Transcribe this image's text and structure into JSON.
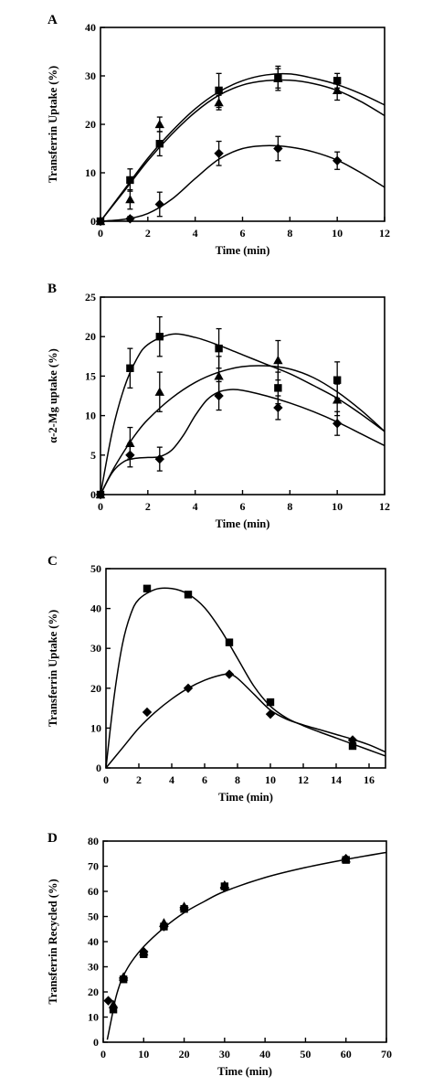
{
  "chart_data": [
    {
      "panel": "A",
      "type": "line",
      "xlabel": "Time (min)",
      "ylabel": "Transferrin Uptake (%)",
      "xlim": [
        0,
        12
      ],
      "ylim": [
        0,
        40
      ],
      "xticks": [
        0,
        2,
        4,
        6,
        8,
        10,
        12
      ],
      "yticks": [
        0,
        10,
        20,
        30,
        40
      ],
      "grid": false,
      "series": [
        {
          "marker": "square",
          "x": [
            0,
            1.25,
            2.5,
            5,
            7.5,
            10
          ],
          "y": [
            0,
            8.5,
            16,
            27,
            29.5,
            29
          ],
          "err": [
            0,
            2.3,
            2.5,
            3.5,
            2.5,
            1.5
          ],
          "curve_x": [
            0,
            1,
            2,
            3,
            4,
            5,
            6,
            7,
            8,
            9,
            10,
            11,
            12
          ],
          "curve_y": [
            0,
            6.5,
            13,
            18.5,
            23.2,
            26.7,
            29,
            30.2,
            30.4,
            29.5,
            28.2,
            26.3,
            24
          ]
        },
        {
          "marker": "triangle",
          "x": [
            0,
            1.25,
            2.5,
            5,
            7.5,
            10
          ],
          "y": [
            0,
            4.5,
            20,
            24.5,
            29.5,
            27
          ],
          "err": [
            0,
            2.0,
            1.5,
            1.5,
            2.0,
            2.0
          ],
          "curve_x": [
            0,
            1,
            2,
            3,
            4,
            5,
            6,
            7,
            8,
            9,
            10,
            11,
            12
          ],
          "curve_y": [
            0,
            6.2,
            12.5,
            17.9,
            22.5,
            26,
            28.1,
            29,
            29.1,
            28.4,
            27,
            24.7,
            21.8
          ]
        },
        {
          "marker": "diamond",
          "x": [
            0,
            1.25,
            2.5,
            5,
            7.5,
            10
          ],
          "y": [
            0,
            0.5,
            3.5,
            14,
            15,
            12.5
          ],
          "err": [
            0,
            0.5,
            2.5,
            2.5,
            2.5,
            1.8
          ],
          "curve_x": [
            0,
            1,
            2,
            3,
            4,
            5,
            6,
            7,
            8,
            9,
            10,
            11,
            12
          ],
          "curve_y": [
            0,
            0.4,
            1.6,
            4.5,
            8.8,
            12.8,
            15,
            15.6,
            15.3,
            14.3,
            12.6,
            10,
            7
          ]
        }
      ]
    },
    {
      "panel": "B",
      "type": "line",
      "xlabel": "Time (min)",
      "ylabel": "α-2-Mg uptake (%)",
      "xlim": [
        0,
        12
      ],
      "ylim": [
        0,
        25
      ],
      "xticks": [
        0,
        2,
        4,
        6,
        8,
        10,
        12
      ],
      "yticks": [
        0,
        5,
        10,
        15,
        20,
        25
      ],
      "grid": false,
      "series": [
        {
          "marker": "square",
          "x": [
            0,
            1.25,
            2.5,
            5,
            7.5,
            10
          ],
          "y": [
            0,
            16,
            20,
            18.5,
            13.5,
            14.5
          ],
          "err": [
            0,
            2.5,
            2.5,
            2.5,
            2.0,
            2.3
          ],
          "curve_x": [
            0,
            0.5,
            1,
            1.5,
            2,
            3,
            4,
            5,
            6,
            7,
            8,
            9,
            10,
            11,
            12
          ],
          "curve_y": [
            0,
            8,
            13.5,
            17,
            19,
            20.3,
            19.9,
            18.9,
            17.7,
            16.5,
            15.3,
            13.8,
            12.2,
            10.2,
            8
          ]
        },
        {
          "marker": "triangle",
          "x": [
            0,
            1.25,
            2.5,
            5,
            7.5,
            10
          ],
          "y": [
            0,
            6.5,
            13,
            15,
            17,
            12
          ],
          "err": [
            0,
            2.0,
            2.5,
            2.5,
            2.5,
            2.0
          ],
          "curve_x": [
            0,
            0.5,
            1,
            1.5,
            2,
            3,
            4,
            5,
            6,
            7,
            8,
            9,
            10,
            11,
            12
          ],
          "curve_y": [
            0,
            3,
            5.5,
            7.7,
            9.5,
            12.2,
            14.2,
            15.5,
            16.2,
            16.3,
            15.9,
            14.8,
            13,
            10.7,
            8
          ]
        },
        {
          "marker": "diamond",
          "x": [
            0,
            1.25,
            2.5,
            5,
            7.5,
            10
          ],
          "y": [
            0,
            5,
            4.5,
            12.5,
            11,
            9
          ],
          "err": [
            0,
            1.5,
            1.5,
            1.8,
            1.5,
            1.5
          ],
          "curve_x": [
            0,
            0.5,
            1,
            1.5,
            2,
            2.5,
            3,
            3.5,
            4,
            4.5,
            5,
            5.5,
            6,
            7,
            8,
            9,
            10,
            11,
            12
          ],
          "curve_y": [
            0,
            2.8,
            4.2,
            4.6,
            4.7,
            4.8,
            5.6,
            7.5,
            10,
            12,
            13,
            13.3,
            13.2,
            12.5,
            11.6,
            10.5,
            9.2,
            7.7,
            6.2
          ]
        }
      ]
    },
    {
      "panel": "C",
      "type": "line",
      "xlabel": "Time (min)",
      "ylabel": "Transferrin Uptake (%)",
      "xlim": [
        0,
        17
      ],
      "ylim": [
        0,
        50
      ],
      "xticks": [
        0,
        2,
        4,
        6,
        8,
        10,
        12,
        14,
        16
      ],
      "yticks": [
        0,
        10,
        20,
        30,
        40,
        50
      ],
      "grid": false,
      "series": [
        {
          "marker": "square",
          "x": [
            2.5,
            5,
            7.5,
            10,
            15
          ],
          "y": [
            45,
            43.5,
            31.5,
            16.5,
            5.5
          ],
          "curve_x": [
            0,
            0.5,
            1,
            1.5,
            2,
            3,
            4,
            5,
            6,
            7,
            8,
            9,
            10,
            11,
            12,
            13,
            14,
            15,
            16,
            17
          ],
          "curve_y": [
            0,
            18,
            31,
            38.5,
            42.3,
            44.8,
            45,
            43.6,
            40.2,
            34.5,
            27.5,
            20.5,
            15.5,
            12.5,
            10.6,
            9,
            7.5,
            6,
            4.5,
            3
          ]
        },
        {
          "marker": "diamond",
          "x": [
            2.5,
            5,
            7.5,
            10,
            15
          ],
          "y": [
            14,
            20,
            23.5,
            13.5,
            7
          ],
          "curve_x": [
            0,
            1,
            2,
            3,
            4,
            5,
            6,
            7,
            7.5,
            8,
            9,
            10,
            11,
            12,
            13,
            14,
            15,
            16,
            17
          ],
          "curve_y": [
            0,
            5,
            10,
            14,
            17.3,
            20,
            22,
            23.3,
            23.5,
            22.5,
            18.5,
            14.5,
            12.2,
            10.8,
            9.6,
            8.4,
            7.2,
            5.8,
            4
          ]
        }
      ]
    },
    {
      "panel": "D",
      "type": "line",
      "xlabel": "Time (min)",
      "ylabel": "Transferrin Recycled (%)",
      "xlim": [
        0,
        70
      ],
      "ylim": [
        0,
        80
      ],
      "xticks": [
        0,
        10,
        20,
        30,
        40,
        50,
        60,
        70
      ],
      "yticks": [
        0,
        10,
        20,
        30,
        40,
        50,
        60,
        70,
        80
      ],
      "grid": false,
      "series": [
        {
          "marker": "square",
          "x": [
            2.5,
            5,
            10,
            15,
            20,
            30,
            60
          ],
          "y": [
            13,
            25,
            35,
            46,
            53,
            62,
            72.5
          ]
        },
        {
          "marker": "triangle",
          "x": [
            2.5,
            5,
            10,
            15,
            20,
            30,
            60
          ],
          "y": [
            15,
            26,
            36,
            47.5,
            54,
            62.5,
            73
          ]
        },
        {
          "marker": "diamond",
          "x": [
            1.25,
            5,
            10,
            15,
            20,
            30,
            60
          ],
          "y": [
            16.5,
            25.5,
            36,
            46,
            53.5,
            61.5,
            73
          ]
        }
      ],
      "fit_curve": {
        "x": [
          1,
          2,
          3,
          4,
          5,
          7,
          10,
          15,
          20,
          25,
          30,
          40,
          50,
          60,
          70
        ],
        "y": [
          1,
          9,
          17,
          22.5,
          26.5,
          32,
          38,
          45.5,
          51.5,
          56,
          60,
          65.5,
          69.5,
          72.7,
          75.5
        ]
      }
    }
  ]
}
